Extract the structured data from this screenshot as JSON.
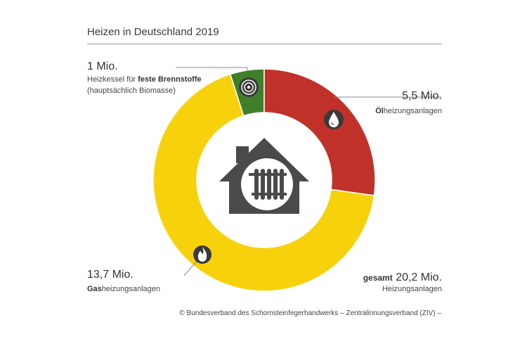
{
  "title": "Heizen in Deutschland 2019",
  "chart_data": {
    "type": "pie",
    "variant": "donut",
    "unit": "Mio.",
    "categories": [
      "Heizkessel für feste Brennstoffe",
      "Ölheizungsanlagen",
      "Gasheizungsanlagen"
    ],
    "values": [
      1.0,
      5.5,
      13.7
    ],
    "colors": [
      "#3f7f2a",
      "#c0312a",
      "#f7d20c"
    ],
    "total": 20.2
  },
  "labels": {
    "solid": {
      "value": "1 Mio.",
      "line1_pre": "Heizkessel für ",
      "line1_bold": "feste Brennstoffe",
      "line2": "(hauptsächlich Biomasse)"
    },
    "oil": {
      "value": "5,5 Mio.",
      "bold": "Öl",
      "rest": "heizungsanlagen"
    },
    "gas": {
      "value": "13,7 Mio.",
      "bold": "Gas",
      "rest": "heizungsanlagen"
    },
    "total": {
      "bold": "gesamt",
      "value": "20,2 Mio.",
      "sub": "Heizungsanlagen"
    }
  },
  "icons": {
    "solid": "wood-log-icon",
    "oil": "oil-drop-icon",
    "gas": "flame-icon",
    "center": "house-radiator-icon"
  },
  "footer": "© Bundesverband des Schornsteinfegerhandwerks – Zentralinnungsverband (ZIV) –"
}
